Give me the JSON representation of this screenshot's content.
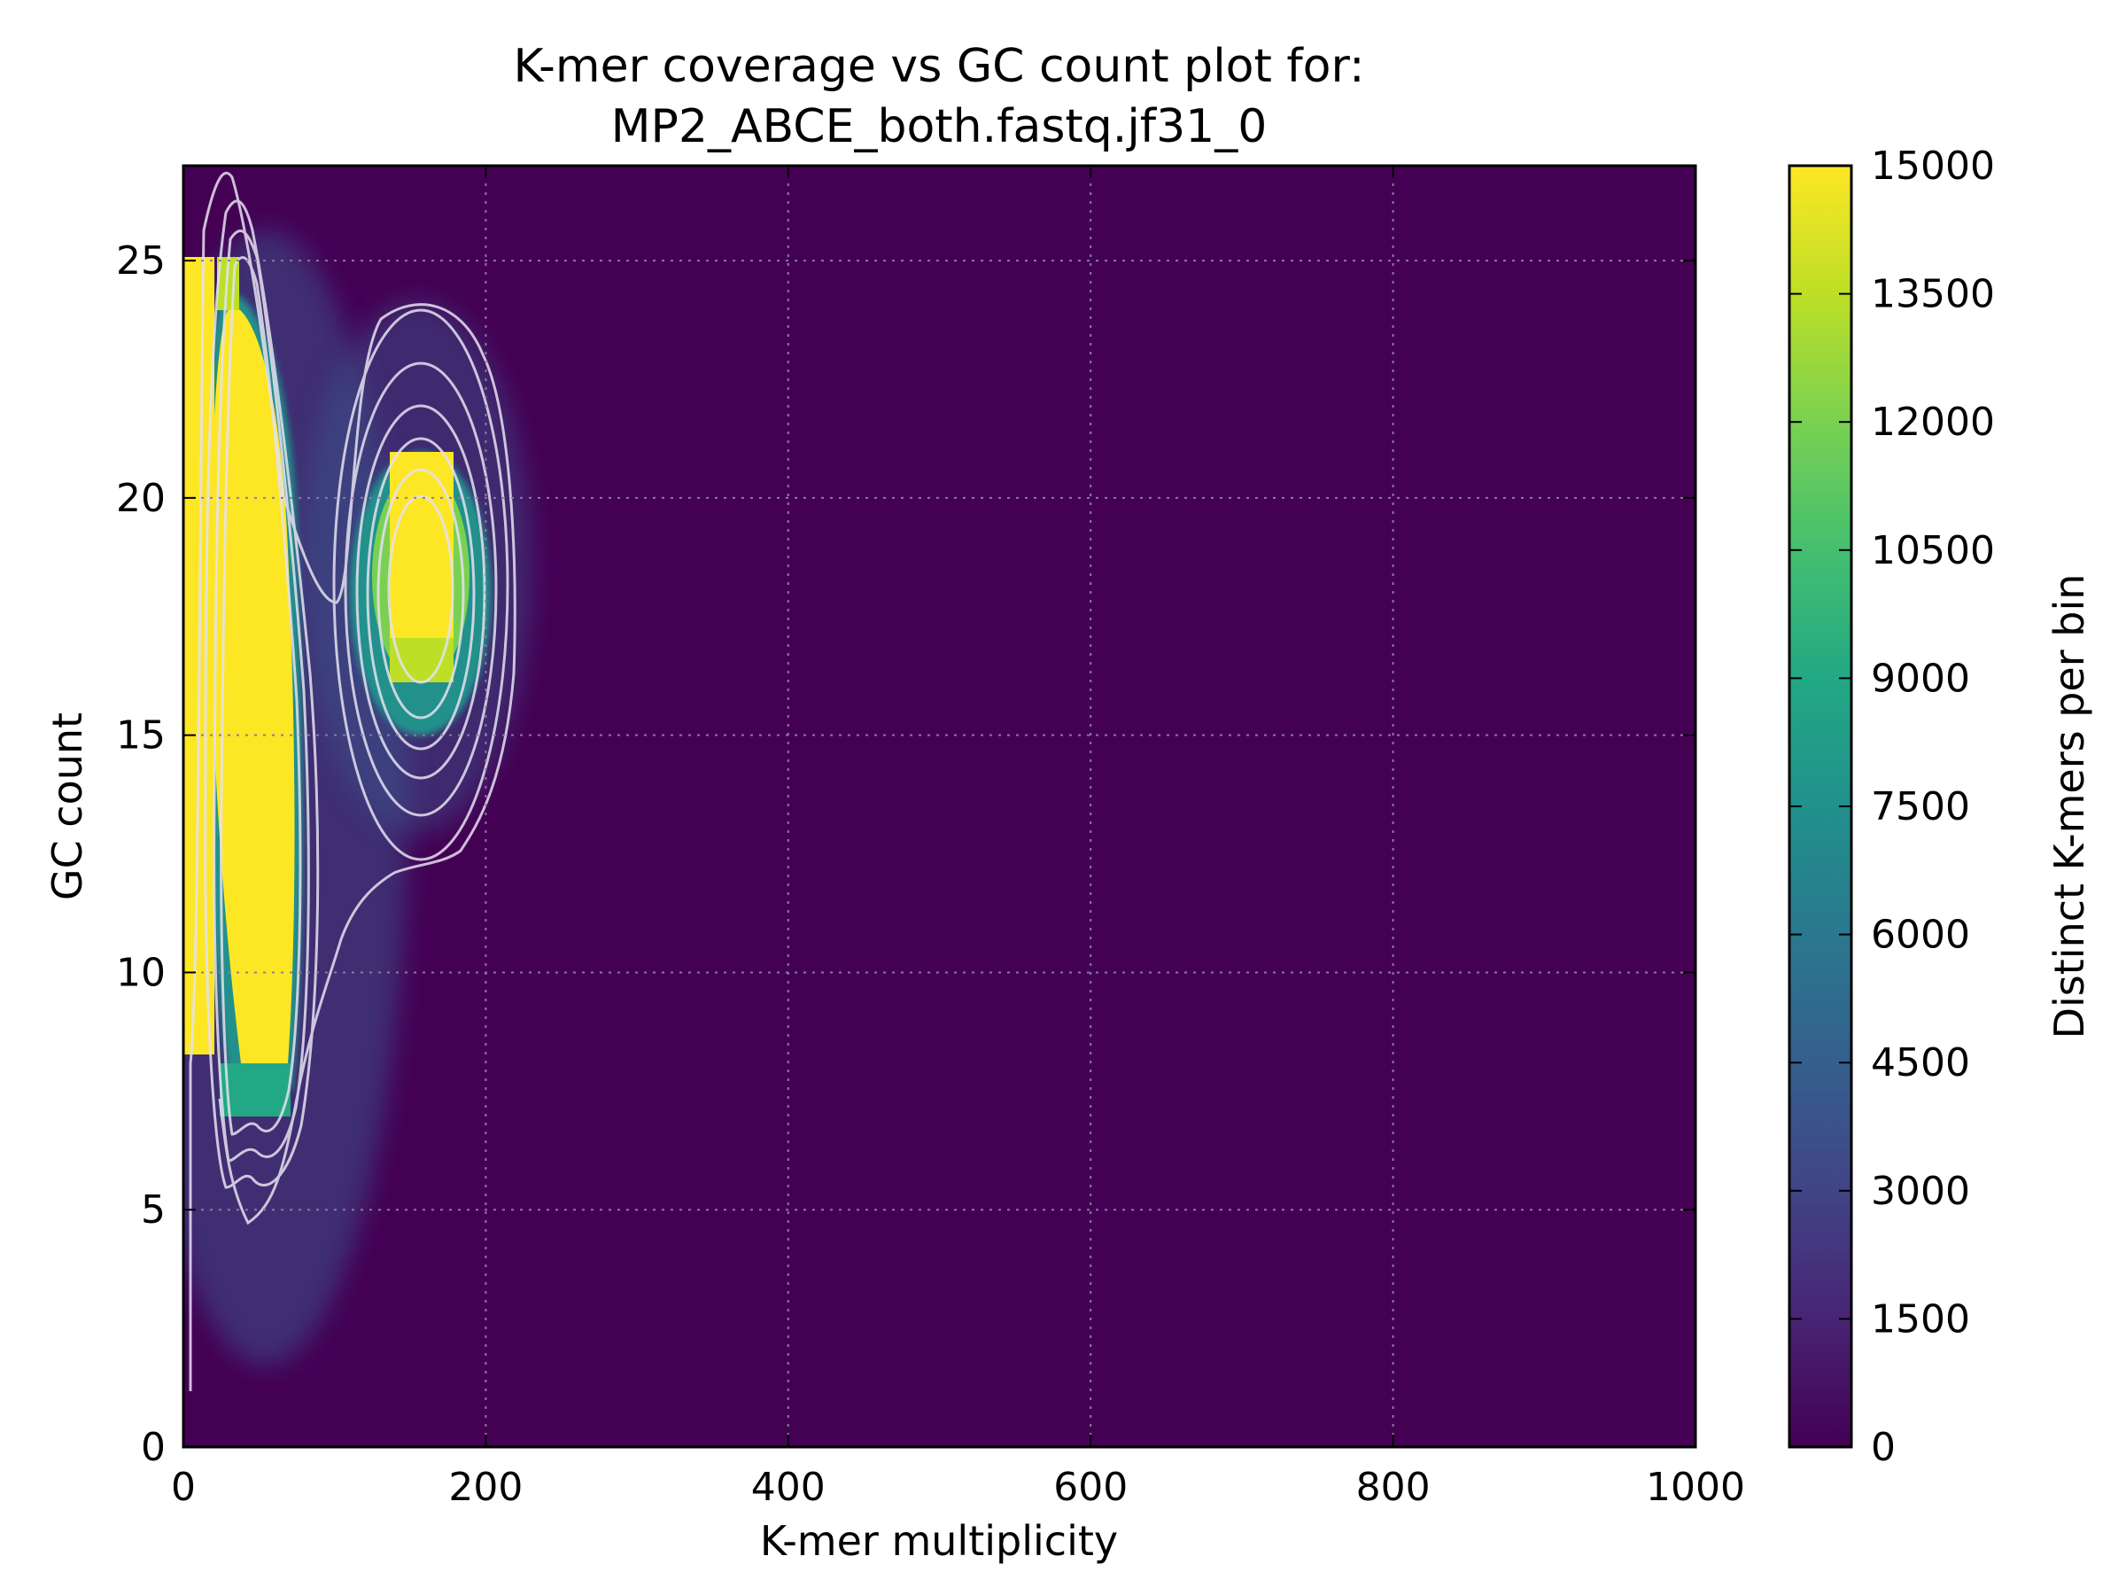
{
  "chart_data": {
    "type": "heatmap",
    "title": [
      "K-mer coverage vs GC count plot for:",
      "MP2_ABCE_both.fastq.jf31_0"
    ],
    "xlabel": "K-mer multiplicity",
    "ylabel": "GC count",
    "xlim": [
      0,
      1000
    ],
    "ylim": [
      0,
      27
    ],
    "x_ticks": [
      0,
      200,
      400,
      600,
      800,
      1000
    ],
    "y_ticks": [
      0,
      5,
      10,
      15,
      20,
      25
    ],
    "grid": true,
    "colormap": "viridis",
    "colorbar": {
      "label": "Distinct K-mers per bin",
      "range": [
        0,
        15000
      ],
      "ticks": [
        0,
        1500,
        3000,
        4500,
        6000,
        7500,
        9000,
        10500,
        12000,
        13500,
        15000
      ]
    },
    "peaks": [
      {
        "x_center": 35,
        "x_width": 45,
        "y_range": [
          7,
          25
        ],
        "level": 15000
      },
      {
        "x_center": 155,
        "x_width": 40,
        "y_range": [
          15,
          22
        ],
        "level": 15000
      }
    ]
  },
  "colors": {
    "background": "#440154",
    "contour": "#e6e1f0",
    "grid": "#8c7aa0"
  }
}
